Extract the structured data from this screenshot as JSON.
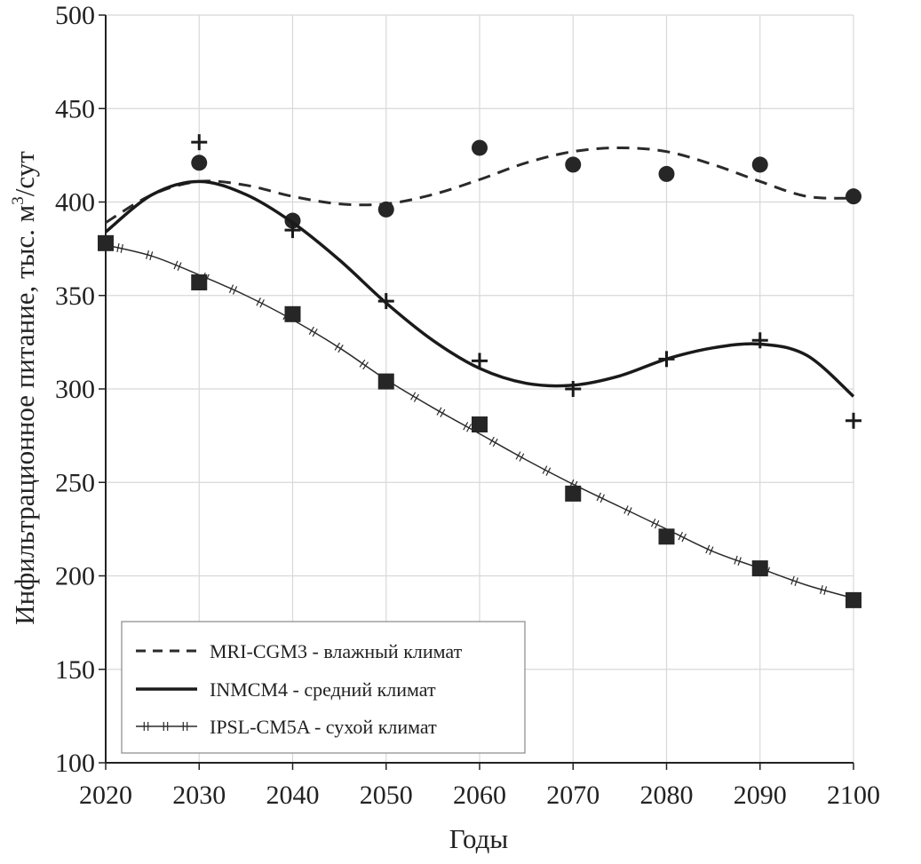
{
  "chart_data": {
    "type": "line",
    "xlabel": "Годы",
    "ylabel_main": "Инфильтрационное питание, тыс. м",
    "ylabel_sup": "3",
    "ylabel_tail": "/сут",
    "xlim": [
      2020,
      2100
    ],
    "ylim": [
      100,
      500
    ],
    "x_ticks": [
      2020,
      2030,
      2040,
      2050,
      2060,
      2070,
      2080,
      2090,
      2100
    ],
    "y_ticks": [
      100,
      150,
      200,
      250,
      300,
      350,
      400,
      450,
      500
    ],
    "grid": true,
    "legend_position": "bottom-left",
    "series": [
      {
        "name": "MRI-CGM3 - влажный климат",
        "line_style": "dashed",
        "marker": "circle",
        "points": [
          [
            2030,
            421
          ],
          [
            2040,
            390
          ],
          [
            2050,
            396
          ],
          [
            2060,
            429
          ],
          [
            2070,
            420
          ],
          [
            2080,
            415
          ],
          [
            2090,
            420
          ],
          [
            2100,
            403
          ]
        ],
        "trend": [
          [
            2020,
            389
          ],
          [
            2025,
            404
          ],
          [
            2030,
            411
          ],
          [
            2035,
            409
          ],
          [
            2040,
            403
          ],
          [
            2045,
            399
          ],
          [
            2050,
            399
          ],
          [
            2055,
            404
          ],
          [
            2060,
            412
          ],
          [
            2065,
            421
          ],
          [
            2070,
            427
          ],
          [
            2075,
            429
          ],
          [
            2080,
            427
          ],
          [
            2085,
            420
          ],
          [
            2090,
            411
          ],
          [
            2095,
            403
          ],
          [
            2100,
            402
          ]
        ]
      },
      {
        "name": "INMCM4 - средний климат",
        "line_style": "solid",
        "marker": "plus",
        "points": [
          [
            2030,
            432
          ],
          [
            2040,
            385
          ],
          [
            2050,
            347
          ],
          [
            2060,
            315
          ],
          [
            2070,
            300
          ],
          [
            2080,
            316
          ],
          [
            2090,
            326
          ],
          [
            2100,
            283
          ]
        ],
        "trend": [
          [
            2020,
            384
          ],
          [
            2025,
            404
          ],
          [
            2030,
            411
          ],
          [
            2035,
            404
          ],
          [
            2040,
            389
          ],
          [
            2045,
            369
          ],
          [
            2050,
            346
          ],
          [
            2055,
            326
          ],
          [
            2060,
            311
          ],
          [
            2065,
            303
          ],
          [
            2070,
            302
          ],
          [
            2075,
            307
          ],
          [
            2080,
            316
          ],
          [
            2085,
            322
          ],
          [
            2090,
            324
          ],
          [
            2095,
            318
          ],
          [
            2100,
            296
          ]
        ]
      },
      {
        "name": "IPSL-CM5A - сухой климат",
        "line_style": "thin-hatched",
        "marker": "square",
        "points": [
          [
            2020,
            378
          ],
          [
            2030,
            357
          ],
          [
            2040,
            340
          ],
          [
            2050,
            304
          ],
          [
            2060,
            281
          ],
          [
            2070,
            244
          ],
          [
            2080,
            221
          ],
          [
            2090,
            204
          ],
          [
            2100,
            187
          ]
        ],
        "trend": [
          [
            2020,
            377
          ],
          [
            2025,
            371
          ],
          [
            2030,
            361
          ],
          [
            2035,
            350
          ],
          [
            2040,
            337
          ],
          [
            2045,
            322
          ],
          [
            2050,
            305
          ],
          [
            2055,
            290
          ],
          [
            2060,
            276
          ],
          [
            2065,
            262
          ],
          [
            2070,
            249
          ],
          [
            2075,
            237
          ],
          [
            2080,
            225
          ],
          [
            2085,
            213
          ],
          [
            2090,
            204
          ],
          [
            2095,
            195
          ],
          [
            2100,
            188
          ]
        ]
      }
    ]
  }
}
